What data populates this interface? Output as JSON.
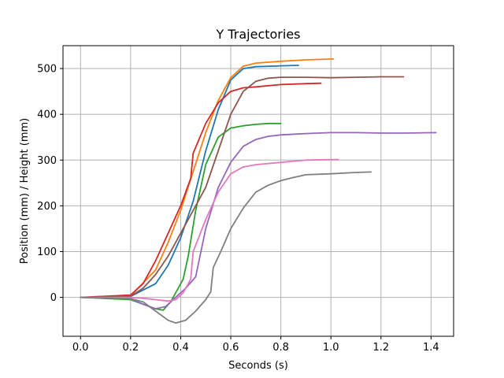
{
  "chart_data": {
    "type": "line",
    "title": "Y Trajectories",
    "xlabel": "Seconds (s)",
    "ylabel": "Position (mm) / Height (mm)",
    "xlim": [
      -0.07,
      1.49
    ],
    "ylim": [
      -85,
      550
    ],
    "xticks": [
      "0.0",
      "0.2",
      "0.4",
      "0.6",
      "0.8",
      "1.0",
      "1.2",
      "1.4"
    ],
    "xtick_values": [
      0.0,
      0.2,
      0.4,
      0.6,
      0.8,
      1.0,
      1.2,
      1.4
    ],
    "yticks": [
      "0",
      "100",
      "200",
      "300",
      "400",
      "500"
    ],
    "ytick_values": [
      0,
      100,
      200,
      300,
      400,
      500
    ],
    "grid": true,
    "series": [
      {
        "color": "#1f77b4",
        "x": [
          0.0,
          0.2,
          0.3,
          0.35,
          0.4,
          0.45,
          0.5,
          0.55,
          0.6,
          0.65,
          0.7,
          0.8,
          0.87
        ],
        "y": [
          0,
          2,
          30,
          70,
          130,
          210,
          320,
          410,
          475,
          500,
          504,
          506,
          507
        ]
      },
      {
        "color": "#ff7f0e",
        "x": [
          0.0,
          0.2,
          0.3,
          0.35,
          0.4,
          0.45,
          0.5,
          0.55,
          0.6,
          0.65,
          0.7,
          0.8,
          0.9,
          1.01
        ],
        "y": [
          0,
          3,
          60,
          120,
          190,
          275,
          360,
          430,
          480,
          505,
          512,
          516,
          519,
          521
        ]
      },
      {
        "color": "#2ca02c",
        "x": [
          0.0,
          0.2,
          0.25,
          0.3,
          0.33,
          0.36,
          0.39,
          0.41,
          0.43,
          0.46,
          0.5,
          0.55,
          0.6,
          0.65,
          0.7,
          0.75,
          0.8
        ],
        "y": [
          0,
          -5,
          -15,
          -25,
          -28,
          -10,
          20,
          40,
          90,
          190,
          290,
          350,
          370,
          375,
          378,
          380,
          380
        ]
      },
      {
        "color": "#d62728",
        "x": [
          0.0,
          0.2,
          0.25,
          0.3,
          0.35,
          0.4,
          0.44,
          0.45,
          0.5,
          0.55,
          0.6,
          0.65,
          0.7,
          0.8,
          0.9,
          0.96
        ],
        "y": [
          0,
          5,
          30,
          80,
          140,
          200,
          260,
          315,
          380,
          425,
          450,
          458,
          460,
          465,
          467,
          468
        ]
      },
      {
        "color": "#9467bd",
        "x": [
          0.0,
          0.2,
          0.25,
          0.3,
          0.34,
          0.38,
          0.42,
          0.46,
          0.5,
          0.55,
          0.6,
          0.65,
          0.7,
          0.75,
          0.8,
          0.9,
          1.0,
          1.1,
          1.2,
          1.3,
          1.42
        ],
        "y": [
          0,
          -3,
          -15,
          -25,
          -20,
          0,
          20,
          45,
          150,
          240,
          295,
          330,
          345,
          352,
          355,
          358,
          360,
          360,
          359,
          359,
          360
        ]
      },
      {
        "color": "#8c564b",
        "x": [
          0.0,
          0.2,
          0.25,
          0.3,
          0.35,
          0.4,
          0.45,
          0.5,
          0.55,
          0.6,
          0.65,
          0.7,
          0.75,
          0.8,
          0.9,
          1.0,
          1.1,
          1.2,
          1.29
        ],
        "y": [
          0,
          2,
          20,
          50,
          90,
          140,
          190,
          240,
          320,
          400,
          450,
          472,
          479,
          481,
          481,
          480,
          481,
          482,
          482
        ]
      },
      {
        "color": "#e377c2",
        "x": [
          0.0,
          0.2,
          0.25,
          0.3,
          0.35,
          0.38,
          0.41,
          0.44,
          0.45,
          0.5,
          0.55,
          0.6,
          0.65,
          0.7,
          0.8,
          0.9,
          1.0,
          1.03
        ],
        "y": [
          0,
          0,
          -2,
          -5,
          -8,
          -5,
          10,
          40,
          100,
          170,
          230,
          270,
          285,
          290,
          295,
          300,
          301,
          301
        ]
      },
      {
        "color": "#7f7f7f",
        "x": [
          0.0,
          0.2,
          0.25,
          0.3,
          0.35,
          0.38,
          0.42,
          0.46,
          0.5,
          0.52,
          0.53,
          0.56,
          0.6,
          0.65,
          0.7,
          0.75,
          0.8,
          0.85,
          0.9,
          1.0,
          1.1,
          1.16
        ],
        "y": [
          0,
          -3,
          -10,
          -30,
          -50,
          -56,
          -50,
          -30,
          -5,
          12,
          65,
          100,
          150,
          195,
          230,
          245,
          255,
          262,
          268,
          270,
          273,
          274
        ]
      }
    ]
  }
}
